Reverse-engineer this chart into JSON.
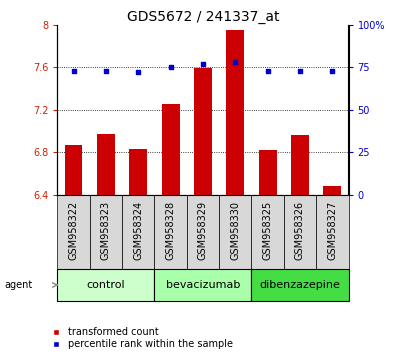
{
  "title": "GDS5672 / 241337_at",
  "samples": [
    "GSM958322",
    "GSM958323",
    "GSM958324",
    "GSM958328",
    "GSM958329",
    "GSM958330",
    "GSM958325",
    "GSM958326",
    "GSM958327"
  ],
  "red_values": [
    6.87,
    6.97,
    6.83,
    7.25,
    7.59,
    7.95,
    6.82,
    6.96,
    6.48
  ],
  "blue_values": [
    73,
    73,
    72,
    75,
    77,
    78,
    73,
    73,
    73
  ],
  "groups": [
    {
      "label": "control",
      "indices": [
        0,
        1,
        2
      ],
      "color": "#ccffcc"
    },
    {
      "label": "bevacizumab",
      "indices": [
        3,
        4,
        5
      ],
      "color": "#aaffaa"
    },
    {
      "label": "dibenzazepine",
      "indices": [
        6,
        7,
        8
      ],
      "color": "#44dd44"
    }
  ],
  "ylim_left": [
    6.4,
    8.0
  ],
  "ylim_right": [
    0,
    100
  ],
  "yticks_left": [
    6.4,
    6.8,
    7.2,
    7.6,
    8.0
  ],
  "yticks_left_labels": [
    "6.4",
    "6.8",
    "7.2",
    "7.6",
    "8"
  ],
  "yticks_right": [
    0,
    25,
    50,
    75,
    100
  ],
  "yticks_right_labels": [
    "0",
    "25",
    "50",
    "75",
    "100%"
  ],
  "bar_color": "#cc0000",
  "dot_color": "#0000cc",
  "bar_width": 0.55,
  "bar_base": 6.4,
  "legend_red_label": "transformed count",
  "legend_blue_label": "percentile rank within the sample",
  "agent_label": "agent",
  "title_fontsize": 10,
  "axis_fontsize": 7,
  "tick_fontsize": 7,
  "group_label_fontsize": 8
}
